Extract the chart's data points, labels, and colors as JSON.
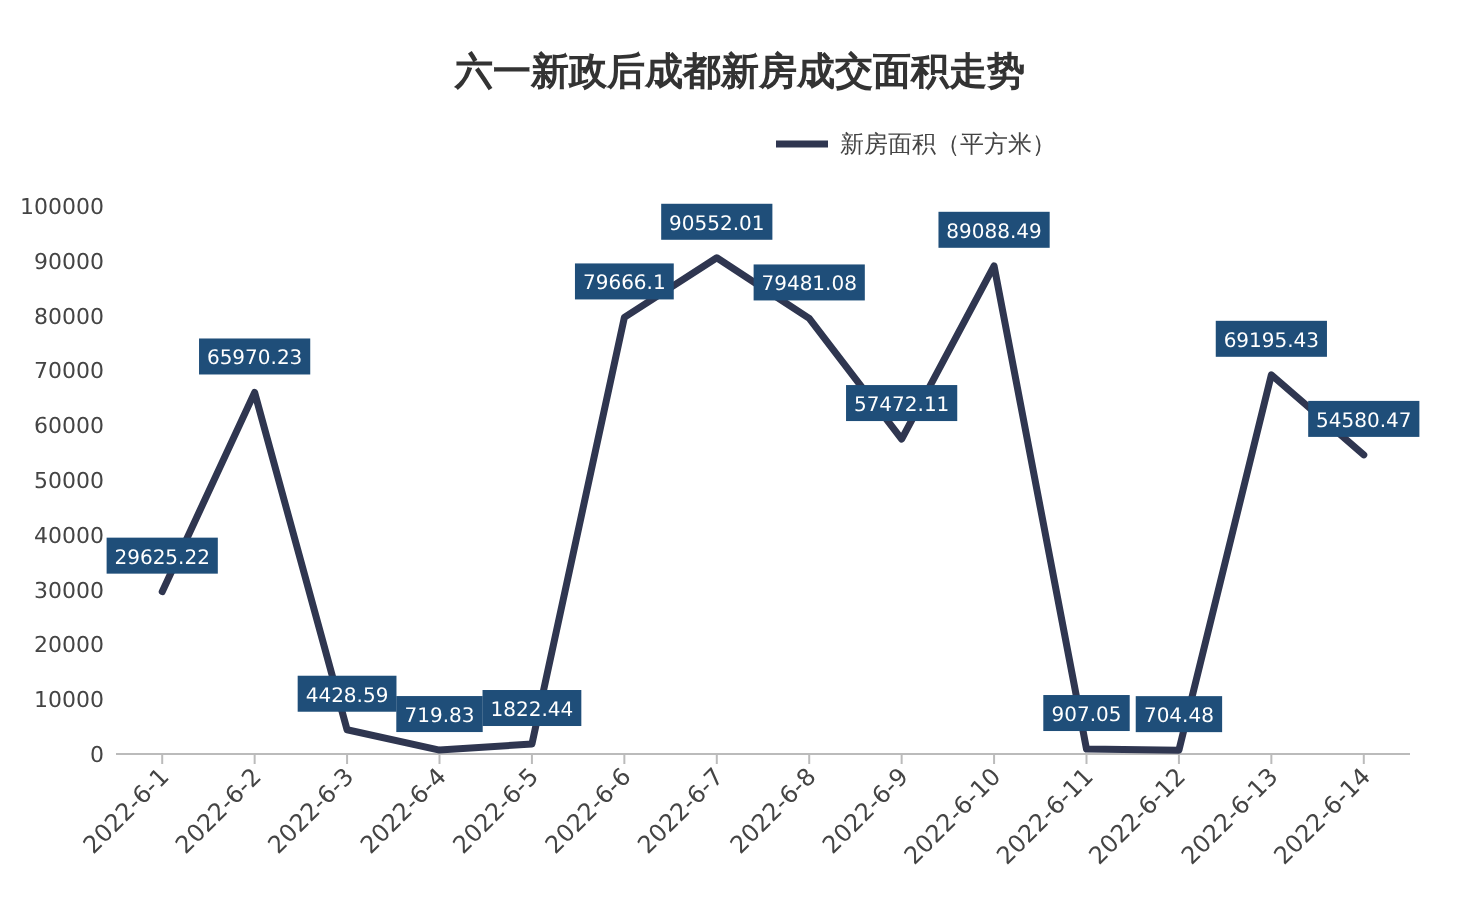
{
  "chart_data": {
    "type": "line",
    "title": "六一新政后成都新房成交面积走势",
    "categories": [
      "2022-6-1",
      "2022-6-2",
      "2022-6-3",
      "2022-6-4",
      "2022-6-5",
      "2022-6-6",
      "2022-6-7",
      "2022-6-8",
      "2022-6-9",
      "2022-6-10",
      "2022-6-11",
      "2022-6-12",
      "2022-6-13",
      "2022-6-14"
    ],
    "series": [
      {
        "name": "新房面积（平方米）",
        "color": "#2f3650",
        "values": [
          29625.22,
          65970.23,
          4428.59,
          719.83,
          1822.44,
          79666.1,
          90552.01,
          79481.08,
          57472.11,
          89088.49,
          907.05,
          704.48,
          69195.43,
          54580.47
        ]
      }
    ],
    "ylim": [
      0,
      100000
    ],
    "yticks": [
      0,
      10000,
      20000,
      30000,
      40000,
      50000,
      60000,
      70000,
      80000,
      90000,
      100000
    ],
    "data_labels": true,
    "legend": "top right",
    "grid": false,
    "marker": "none",
    "line_style": "solid"
  }
}
